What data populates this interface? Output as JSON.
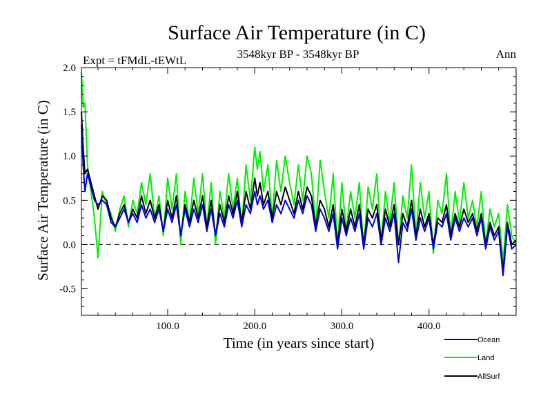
{
  "chart_data": {
    "type": "line",
    "title": "Surface Air Temperature (in C)",
    "subtitle": "3548kyr BP - 3548kyr BP",
    "expt_label": "Expt = tFMdL-tEWtL",
    "period_label": "Ann",
    "xlabel": "Time (in years since start)",
    "ylabel": "Surface Air Temperature (in C)",
    "xlim": [
      1,
      500
    ],
    "ylim": [
      -0.8,
      2.0
    ],
    "xticks": [
      100,
      200,
      300,
      400
    ],
    "xtick_labels": [
      "100.0",
      "200.0",
      "300.0",
      "400.0"
    ],
    "yticks": [
      -0.5,
      0.0,
      0.5,
      1.0,
      1.5,
      2.0
    ],
    "ytick_labels": [
      "-0.5",
      "0.0",
      "0.5",
      "1.0",
      "1.5",
      "2.0"
    ],
    "reference_line": 0.0,
    "legend_position": "bottom-right",
    "series": [
      {
        "name": "Land",
        "color": "#00ee00",
        "x": [
          1,
          3,
          5,
          8,
          12,
          16,
          20,
          25,
          30,
          35,
          40,
          45,
          50,
          55,
          60,
          65,
          70,
          75,
          80,
          85,
          90,
          95,
          100,
          105,
          110,
          115,
          120,
          125,
          130,
          135,
          140,
          145,
          150,
          155,
          160,
          165,
          170,
          175,
          180,
          185,
          190,
          195,
          200,
          203,
          206,
          210,
          215,
          220,
          225,
          230,
          235,
          240,
          245,
          250,
          255,
          260,
          265,
          270,
          275,
          280,
          285,
          290,
          295,
          300,
          305,
          310,
          315,
          320,
          325,
          330,
          335,
          340,
          345,
          350,
          355,
          360,
          365,
          370,
          375,
          380,
          385,
          390,
          395,
          400,
          405,
          410,
          415,
          420,
          425,
          430,
          435,
          440,
          445,
          450,
          455,
          460,
          465,
          470,
          475,
          480,
          485,
          490,
          495,
          500
        ],
        "values": [
          1.95,
          1.55,
          1.6,
          0.9,
          0.6,
          0.3,
          -0.15,
          0.6,
          0.45,
          0.35,
          0.15,
          0.4,
          0.55,
          0.2,
          0.5,
          0.35,
          0.7,
          0.45,
          0.8,
          0.3,
          0.55,
          0.1,
          0.75,
          0.4,
          0.8,
          0.0,
          0.6,
          0.25,
          0.75,
          0.35,
          0.8,
          0.2,
          0.7,
          0.0,
          0.6,
          0.3,
          0.8,
          0.4,
          0.75,
          0.2,
          0.9,
          0.5,
          1.1,
          0.85,
          1.05,
          0.6,
          0.9,
          0.3,
          0.95,
          0.6,
          1.0,
          0.7,
          0.45,
          0.9,
          0.5,
          1.0,
          0.8,
          0.2,
          0.95,
          0.6,
          0.3,
          0.8,
          0.0,
          0.7,
          0.15,
          0.6,
          0.3,
          0.7,
          -0.05,
          0.65,
          0.4,
          0.8,
          0.0,
          0.6,
          0.25,
          0.7,
          0.0,
          0.55,
          0.3,
          0.9,
          0.1,
          0.7,
          0.3,
          0.6,
          -0.1,
          0.5,
          0.35,
          0.8,
          0.1,
          0.6,
          0.25,
          0.7,
          0.3,
          0.5,
          0.2,
          0.6,
          0.0,
          0.4,
          0.2,
          0.35,
          -0.2,
          0.45,
          0.1,
          0.0
        ]
      },
      {
        "name": "AllSurf",
        "color": "#000000",
        "x": [
          1,
          3,
          5,
          8,
          12,
          16,
          20,
          25,
          30,
          35,
          40,
          45,
          50,
          55,
          60,
          65,
          70,
          75,
          80,
          85,
          90,
          95,
          100,
          105,
          110,
          115,
          120,
          125,
          130,
          135,
          140,
          145,
          150,
          155,
          160,
          165,
          170,
          175,
          180,
          185,
          190,
          195,
          200,
          203,
          206,
          210,
          215,
          220,
          225,
          230,
          235,
          240,
          245,
          250,
          255,
          260,
          265,
          270,
          275,
          280,
          285,
          290,
          295,
          300,
          305,
          310,
          315,
          320,
          325,
          330,
          335,
          340,
          345,
          350,
          355,
          360,
          365,
          370,
          375,
          380,
          385,
          390,
          395,
          400,
          405,
          410,
          415,
          420,
          425,
          430,
          435,
          440,
          445,
          450,
          455,
          460,
          465,
          470,
          475,
          480,
          485,
          490,
          495,
          500
        ],
        "values": [
          1.5,
          1.1,
          0.8,
          0.85,
          0.7,
          0.55,
          0.4,
          0.55,
          0.5,
          0.3,
          0.2,
          0.35,
          0.45,
          0.25,
          0.4,
          0.3,
          0.55,
          0.35,
          0.5,
          0.3,
          0.45,
          0.15,
          0.5,
          0.3,
          0.55,
          0.1,
          0.45,
          0.25,
          0.5,
          0.3,
          0.55,
          0.2,
          0.5,
          0.1,
          0.45,
          0.25,
          0.55,
          0.35,
          0.6,
          0.25,
          0.6,
          0.4,
          0.75,
          0.55,
          0.7,
          0.45,
          0.6,
          0.3,
          0.6,
          0.45,
          0.65,
          0.5,
          0.35,
          0.6,
          0.4,
          0.65,
          0.55,
          0.2,
          0.5,
          0.4,
          0.2,
          0.45,
          0.0,
          0.4,
          0.15,
          0.4,
          0.2,
          0.45,
          0.0,
          0.4,
          0.3,
          0.45,
          0.05,
          0.4,
          0.2,
          0.45,
          0.0,
          0.35,
          0.2,
          0.5,
          0.1,
          0.4,
          0.2,
          0.35,
          0.0,
          0.3,
          0.25,
          0.45,
          0.1,
          0.35,
          0.2,
          0.4,
          0.25,
          0.35,
          0.15,
          0.35,
          0.0,
          0.25,
          0.1,
          0.2,
          -0.3,
          0.25,
          0.0,
          0.05
        ]
      },
      {
        "name": "Ocean",
        "color": "#0000dd",
        "x": [
          1,
          3,
          5,
          8,
          12,
          16,
          20,
          25,
          30,
          35,
          40,
          45,
          50,
          55,
          60,
          65,
          70,
          75,
          80,
          85,
          90,
          95,
          100,
          105,
          110,
          115,
          120,
          125,
          130,
          135,
          140,
          145,
          150,
          155,
          160,
          165,
          170,
          175,
          180,
          185,
          190,
          195,
          200,
          203,
          206,
          210,
          215,
          220,
          225,
          230,
          235,
          240,
          245,
          250,
          255,
          260,
          265,
          270,
          275,
          280,
          285,
          290,
          295,
          300,
          305,
          310,
          315,
          320,
          325,
          330,
          335,
          340,
          345,
          350,
          355,
          360,
          365,
          370,
          375,
          380,
          385,
          390,
          395,
          400,
          405,
          410,
          415,
          420,
          425,
          430,
          435,
          440,
          445,
          450,
          455,
          460,
          465,
          470,
          475,
          480,
          485,
          490,
          495,
          500
        ],
        "values": [
          1.35,
          0.9,
          0.6,
          0.8,
          0.65,
          0.5,
          0.45,
          0.5,
          0.45,
          0.25,
          0.2,
          0.3,
          0.4,
          0.25,
          0.35,
          0.25,
          0.45,
          0.3,
          0.4,
          0.25,
          0.4,
          0.15,
          0.4,
          0.25,
          0.45,
          0.1,
          0.4,
          0.2,
          0.4,
          0.25,
          0.45,
          0.15,
          0.4,
          0.1,
          0.35,
          0.2,
          0.45,
          0.3,
          0.5,
          0.2,
          0.45,
          0.35,
          0.6,
          0.45,
          0.55,
          0.4,
          0.5,
          0.25,
          0.45,
          0.35,
          0.5,
          0.4,
          0.3,
          0.5,
          0.35,
          0.55,
          0.45,
          0.15,
          0.4,
          0.3,
          0.15,
          0.35,
          -0.05,
          0.3,
          0.1,
          0.3,
          0.15,
          0.35,
          -0.05,
          0.3,
          0.2,
          0.35,
          0.0,
          0.3,
          0.15,
          0.35,
          -0.2,
          0.25,
          0.15,
          0.4,
          0.05,
          0.3,
          0.15,
          0.3,
          -0.05,
          0.25,
          0.2,
          0.35,
          0.05,
          0.3,
          0.15,
          0.3,
          0.2,
          0.3,
          0.1,
          0.3,
          -0.05,
          0.2,
          0.05,
          0.15,
          -0.35,
          0.2,
          -0.05,
          0.0
        ]
      }
    ]
  },
  "legend": {
    "ocean_label": "Ocean",
    "land_label": "Land",
    "allsurf_label": "AllSurf"
  }
}
